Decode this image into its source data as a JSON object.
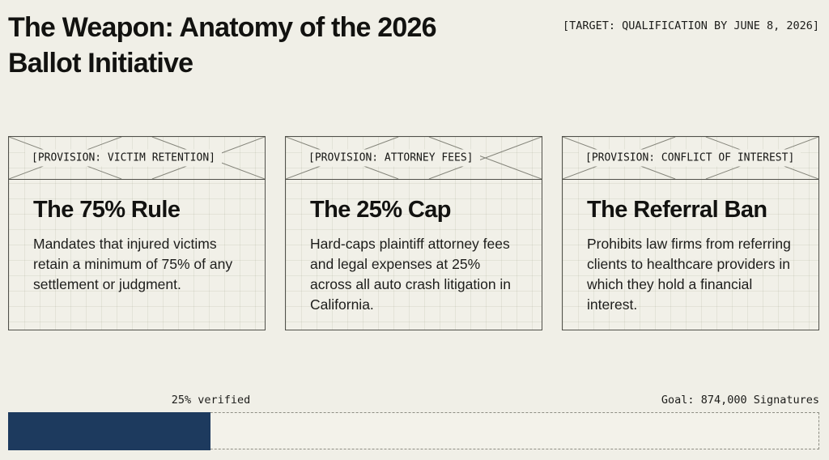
{
  "slide": {
    "title": "The Weapon: Anatomy of the 2026 Ballot Initiative",
    "target_label": "[TARGET: QUALIFICATION BY JUNE 8, 2026]"
  },
  "cards": [
    {
      "tag": "[PROVISION: VICTIM RETENTION]",
      "title": "The 75% Rule",
      "body": "Mandates that injured victims retain a minimum of 75% of any settlement or judgment."
    },
    {
      "tag": "[PROVISION: ATTORNEY FEES]",
      "title": "The 25% Cap",
      "body": "Hard-caps plaintiff attorney fees and legal expenses at 25% across all auto crash litigation in California."
    },
    {
      "tag": "[PROVISION: CONFLICT OF INTEREST]",
      "title": "The Referral Ban",
      "body": "Prohibits law firms from referring clients to healthcare providers in which they hold a financial interest."
    }
  ],
  "progress": {
    "verified_label": "25% verified",
    "goal_label": "Goal: 874,000 Signatures",
    "percent_verified": 25,
    "goal_signatures": "874,000"
  },
  "icons": [
    {
      "name": "placeholder-x-icon",
      "shape": "wireframe diagonal cross placeholder"
    }
  ],
  "colors": {
    "background": "#f0efe7",
    "ink": "#151513",
    "card_border": "#51514b",
    "accent_navy": "#1d3a5e",
    "dashed_border": "#8e8e84"
  }
}
